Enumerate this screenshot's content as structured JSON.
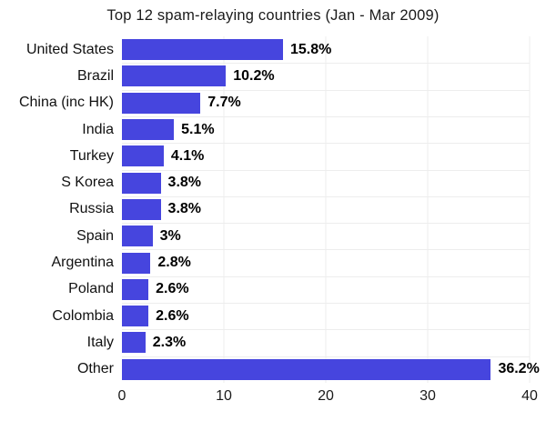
{
  "chart_data": {
    "type": "bar",
    "orientation": "horizontal",
    "title": "Top 12 spam-relaying countries (Jan - Mar 2009)",
    "categories": [
      "United States",
      "Brazil",
      "China (inc HK)",
      "India",
      "Turkey",
      "S Korea",
      "Russia",
      "Spain",
      "Argentina",
      "Poland",
      "Colombia",
      "Italy",
      "Other"
    ],
    "values": [
      15.8,
      10.2,
      7.7,
      5.1,
      4.1,
      3.8,
      3.8,
      3,
      2.8,
      2.6,
      2.6,
      2.3,
      36.2
    ],
    "value_labels": [
      "15.8%",
      "10.2%",
      "7.7%",
      "5.1%",
      "4.1%",
      "3.8%",
      "3.8%",
      "3%",
      "2.8%",
      "2.6%",
      "2.6%",
      "2.3%",
      "36.2%"
    ],
    "xlabel": "",
    "ylabel": "",
    "xlim": [
      0,
      40
    ],
    "x_ticks": [
      0,
      10,
      20,
      30,
      40
    ],
    "grid": true,
    "legend": false,
    "bar_color": "#4645de",
    "grid_color": "#ededed",
    "text_color": "#111111"
  }
}
